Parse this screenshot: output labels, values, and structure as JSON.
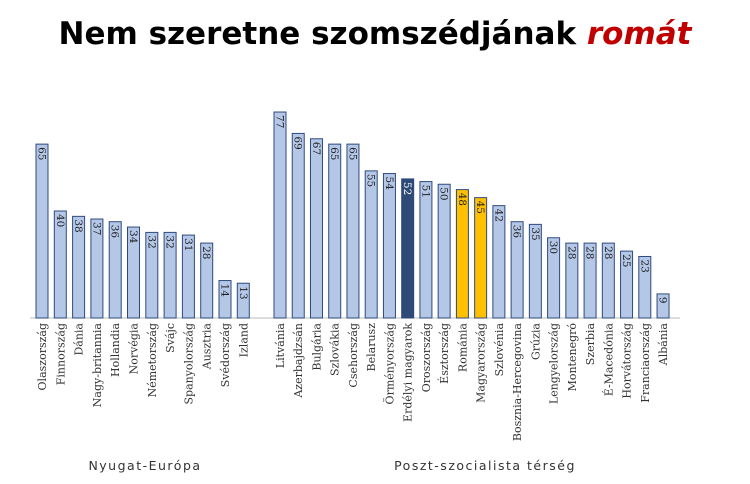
{
  "title": "Nem szeretne szomszédjának",
  "title_highlight": "romát",
  "chart_data": [
    {
      "type": "bar",
      "group_label": "Nyugat-Európa",
      "categories": [
        "Olaszország",
        "Finnország",
        "Dánia",
        "Nagy-britannia",
        "Hollandia",
        "Norvégia",
        "Németország",
        "Svájc",
        "Spanyolország",
        "Ausztria",
        "Svédország",
        "Izland"
      ],
      "values": [
        65,
        40,
        38,
        37,
        36,
        34,
        32,
        32,
        31,
        28,
        14,
        13
      ],
      "colors": [
        "#b4c7e7",
        "#b4c7e7",
        "#b4c7e7",
        "#b4c7e7",
        "#b4c7e7",
        "#b4c7e7",
        "#b4c7e7",
        "#b4c7e7",
        "#b4c7e7",
        "#b4c7e7",
        "#b4c7e7",
        "#b4c7e7"
      ],
      "ylim": [
        0,
        80
      ]
    },
    {
      "type": "bar",
      "group_label": "Poszt-szocialista térség",
      "categories": [
        "Litvánia",
        "Azerbajdzsán",
        "Bulgária",
        "Szlovákia",
        "Csehország",
        "Belarusz",
        "Örményország",
        "Erdélyi magyarok",
        "Oroszország",
        "Észtország",
        "Románia",
        "Magyarország",
        "Szlovénia",
        "Bosznia-Hercegovina",
        "Grúzia",
        "Lengyelország",
        "Montenegró",
        "Szerbia",
        "É-Macedónia",
        "Horvátország",
        "Franciaország",
        "Albánia"
      ],
      "values": [
        77,
        69,
        67,
        65,
        65,
        55,
        54,
        52,
        51,
        50,
        48,
        45,
        42,
        36,
        35,
        30,
        28,
        28,
        28,
        25,
        23,
        9
      ],
      "colors": [
        "#b4c7e7",
        "#b4c7e7",
        "#b4c7e7",
        "#b4c7e7",
        "#b4c7e7",
        "#b4c7e7",
        "#b4c7e7",
        "#2f4a78",
        "#b4c7e7",
        "#b4c7e7",
        "#ffc000",
        "#ffc000",
        "#b4c7e7",
        "#b4c7e7",
        "#b4c7e7",
        "#b4c7e7",
        "#b4c7e7",
        "#b4c7e7",
        "#b4c7e7",
        "#b4c7e7",
        "#b4c7e7",
        "#b4c7e7"
      ],
      "ylim": [
        0,
        80
      ]
    }
  ]
}
